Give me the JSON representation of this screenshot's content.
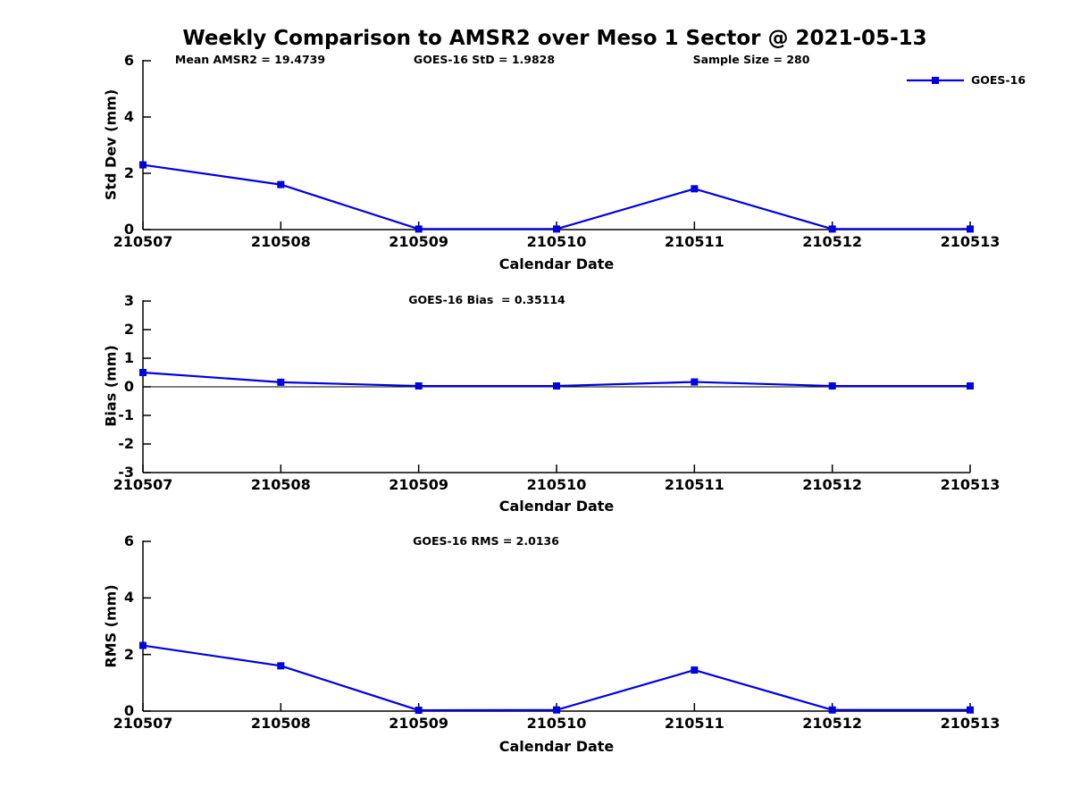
{
  "title": "Weekly Comparison to AMSR2 over Meso 1 Sector @ 2021-05-13",
  "header_annotations": {
    "mean_amsr2": "Mean AMSR2 = 19.4739",
    "goes16_std": "GOES-16 StD = 1.9828",
    "sample_size": "Sample Size = 280"
  },
  "legend": {
    "label": "GOES-16",
    "position": "top-right"
  },
  "colors": {
    "line": "#0000e0",
    "axis": "#000000",
    "text": "#000000",
    "background": "#ffffff"
  },
  "chart_data": [
    {
      "type": "line",
      "subtitle": "",
      "categories": [
        "210507",
        "210508",
        "210509",
        "210510",
        "210511",
        "210512",
        "210513"
      ],
      "series": [
        {
          "name": "GOES-16",
          "values": [
            2.3,
            1.6,
            0.02,
            0.02,
            1.45,
            0.02,
            0.02
          ]
        }
      ],
      "xlabel": "Calendar Date",
      "ylabel": "Std Dev (mm)",
      "ylim": [
        0,
        6
      ],
      "yticks": [
        0,
        2,
        4,
        6
      ],
      "zero_line": false,
      "grid": false,
      "marker": "square"
    },
    {
      "type": "line",
      "subtitle": "GOES-16 Bias  = 0.35114",
      "categories": [
        "210507",
        "210508",
        "210509",
        "210510",
        "210511",
        "210512",
        "210513"
      ],
      "series": [
        {
          "name": "GOES-16",
          "values": [
            0.5,
            0.16,
            0.03,
            0.03,
            0.17,
            0.03,
            0.03
          ]
        }
      ],
      "xlabel": "Calendar Date",
      "ylabel": "Bias (mm)",
      "ylim": [
        -3,
        3
      ],
      "yticks": [
        -3,
        -2,
        -1,
        0,
        1,
        2,
        3
      ],
      "zero_line": true,
      "grid": false,
      "marker": "square"
    },
    {
      "type": "line",
      "subtitle": "GOES-16 RMS = 2.0136",
      "categories": [
        "210507",
        "210508",
        "210509",
        "210510",
        "210511",
        "210512",
        "210513"
      ],
      "series": [
        {
          "name": "GOES-16",
          "values": [
            2.32,
            1.6,
            0.03,
            0.04,
            1.45,
            0.04,
            0.04
          ]
        }
      ],
      "xlabel": "Calendar Date",
      "ylabel": "RMS (mm)",
      "ylim": [
        0,
        6
      ],
      "yticks": [
        0,
        2,
        4,
        6
      ],
      "zero_line": false,
      "grid": false,
      "marker": "square"
    }
  ]
}
